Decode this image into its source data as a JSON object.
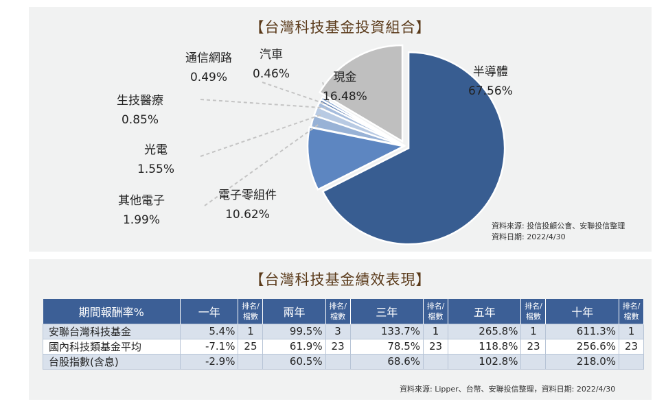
{
  "pie_title": "【台灣科技基金投資組合】",
  "pie_source_line1": "資料來源: 投信投顧公會、安聯投信整理",
  "pie_source_line2": "資料日期:  2022/4/30",
  "chart_data": {
    "type": "pie",
    "title": "【台灣科技基金投資組合】",
    "slices": [
      {
        "label": "半導體",
        "value_text": "67.56%",
        "value": 67.56,
        "color": "#385d91"
      },
      {
        "label": "電子零組件",
        "value_text": "10.62%",
        "value": 10.62,
        "color": "#5d86c1"
      },
      {
        "label": "其他電子",
        "value_text": "1.99%",
        "value": 1.99,
        "color": "#98b2d6"
      },
      {
        "label": "光電",
        "value_text": "1.55%",
        "value": 1.55,
        "color": "#b8cae3"
      },
      {
        "label": "生技醫療",
        "value_text": "0.85%",
        "value": 0.85,
        "color": "#a6bcdc"
      },
      {
        "label": "通信網路",
        "value_text": "0.49%",
        "value": 0.49,
        "color": "#4a6fa8"
      },
      {
        "label": "汽車",
        "value_text": "0.46%",
        "value": 0.46,
        "color": "#7fa0cf"
      },
      {
        "label": "現金",
        "value_text": "16.48%",
        "value": 16.48,
        "color": "#bfbfbf"
      }
    ]
  },
  "table_title": "【台灣科技基金績效表現】",
  "table_source": "資料來源: Lipper、台幣、安聯投信整理，資料日期:  2022/4/30",
  "table": {
    "headers": [
      "期間報酬率%",
      "一年",
      "排名/檔數",
      "兩年",
      "排名/檔數",
      "三年",
      "排名/檔數",
      "五年",
      "排名/檔數",
      "十年",
      "排名/檔數"
    ],
    "rows": [
      [
        "安聯台灣科技基金",
        "5.4%",
        "1",
        "99.5%",
        "3",
        "133.7%",
        "1",
        "265.8%",
        "1",
        "611.3%",
        "1"
      ],
      [
        "國內科技類基金平均",
        "-7.1%",
        "25",
        "61.9%",
        "23",
        "78.5%",
        "23",
        "118.8%",
        "23",
        "256.6%",
        "23"
      ],
      [
        "台股指數(含息)",
        "-2.9%",
        "",
        "60.5%",
        "",
        "68.6%",
        "",
        "102.8%",
        "",
        "218.0%",
        ""
      ]
    ]
  }
}
